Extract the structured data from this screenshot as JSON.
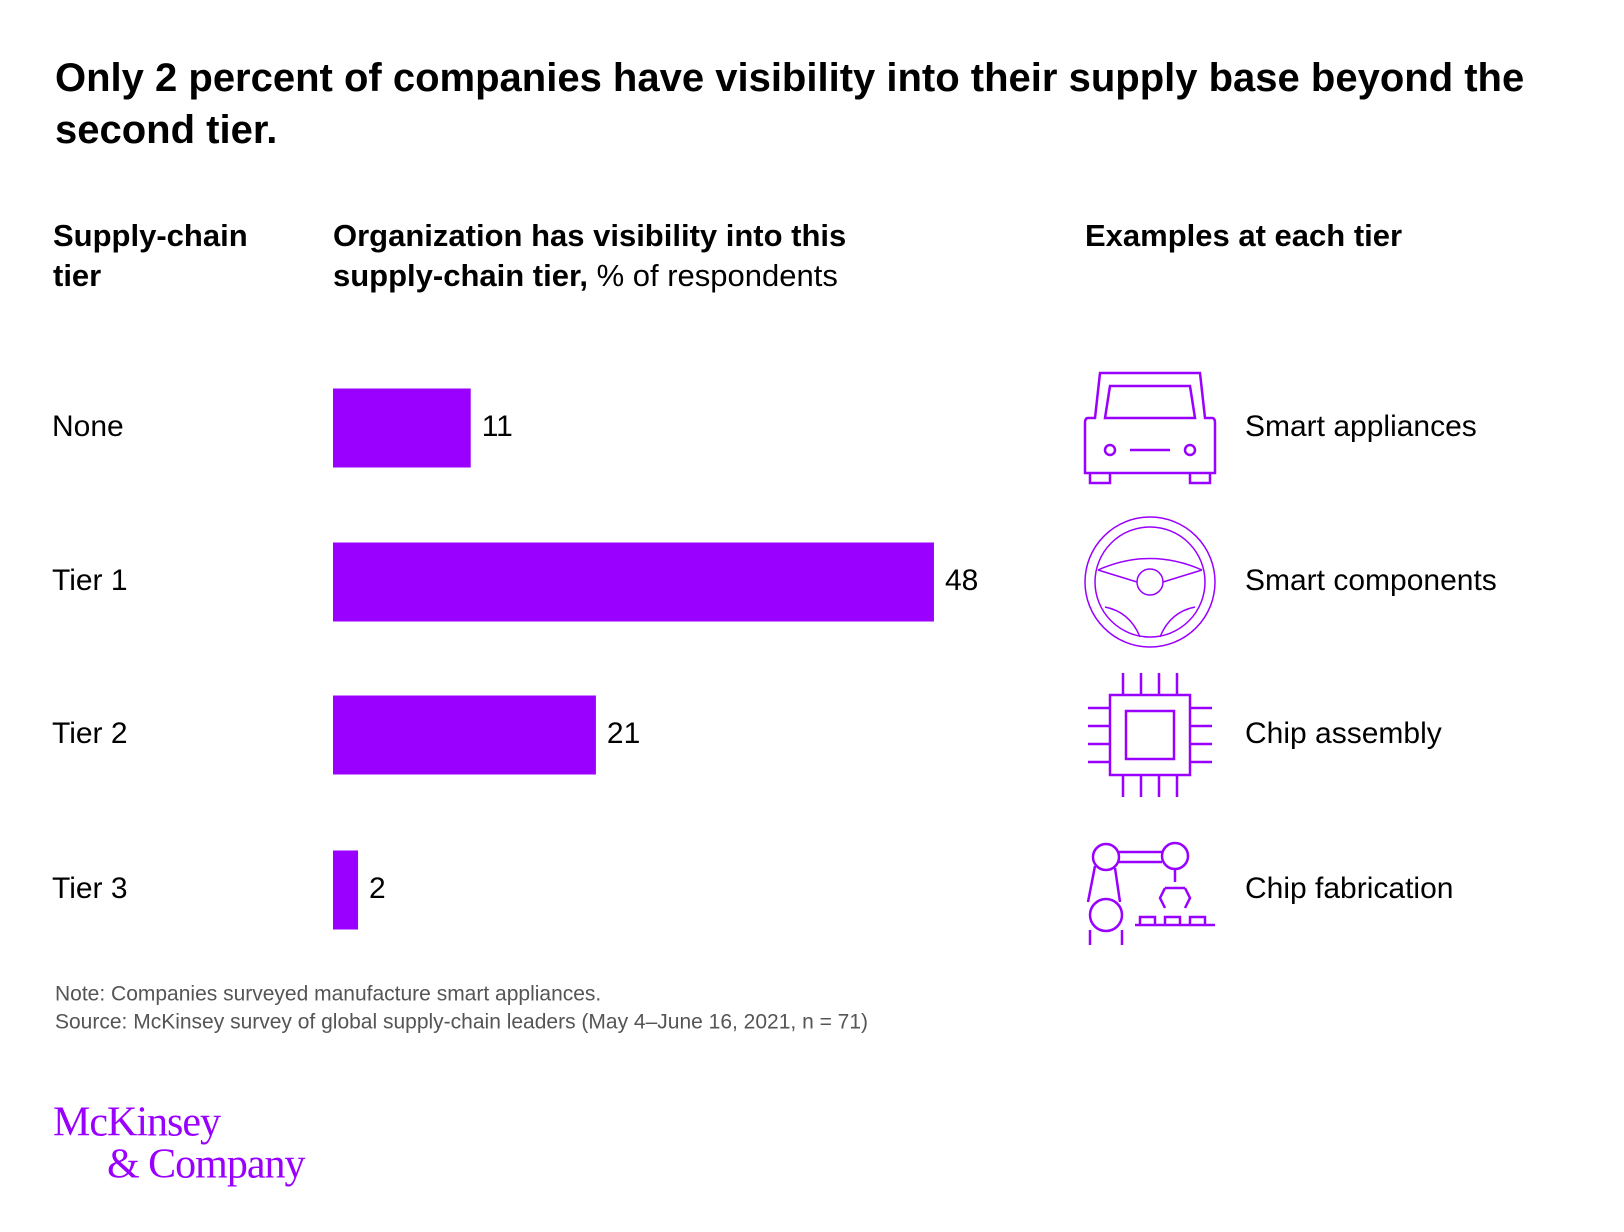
{
  "chart_data": {
    "type": "bar",
    "title": "Only 2 percent of companies have visibility into their supply base beyond the second tier.",
    "category_header": "Supply-chain tier",
    "value_header": "Organization has visibility into this supply-chain tier,",
    "value_unit": "% of respondents",
    "examples_header": "Examples at each tier",
    "categories": [
      "None",
      "Tier 1",
      "Tier 2",
      "Tier 3"
    ],
    "values": [
      11,
      48,
      21,
      2
    ],
    "examples": [
      "Smart appliances",
      "Smart components",
      "Chip assembly",
      "Chip fabrication"
    ],
    "color": "#9900ff",
    "note": "Note: Companies surveyed manufacture smart appliances.",
    "source": "Source: McKinsey survey of global supply-chain leaders (May 4–June 16, 2021, n = 71)",
    "logo": [
      "McKinsey",
      "& Company"
    ]
  }
}
